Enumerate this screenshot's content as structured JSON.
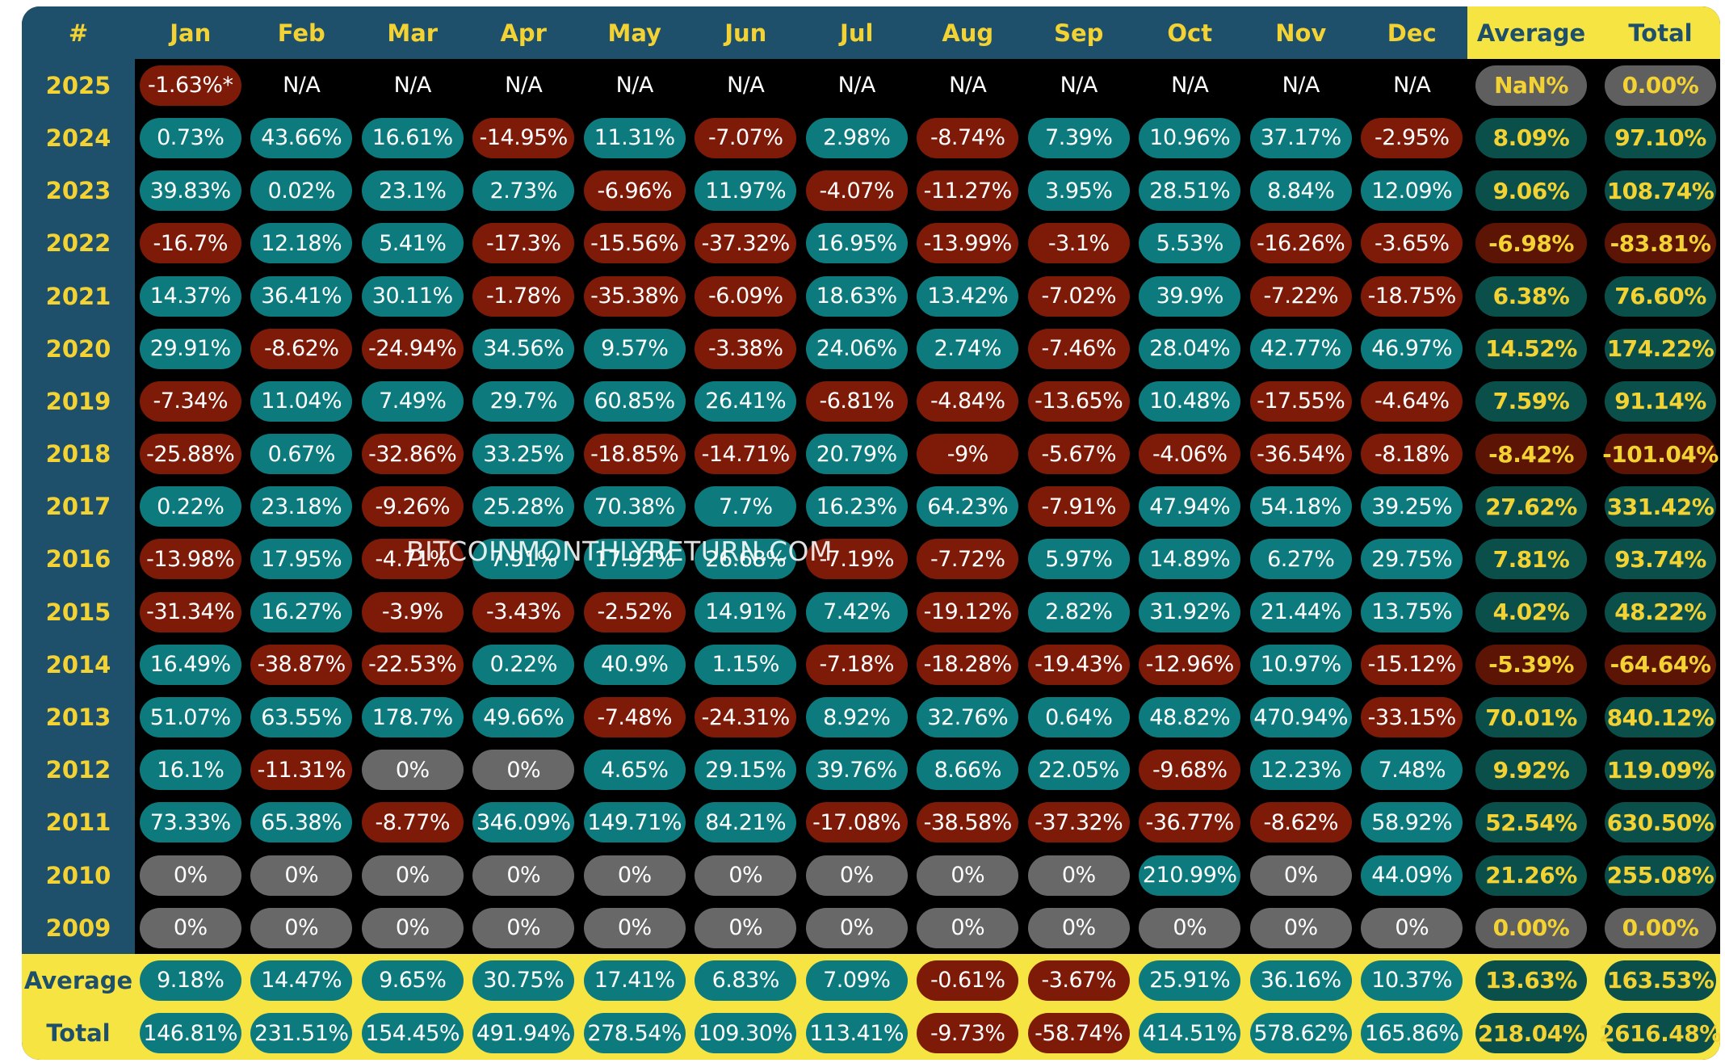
{
  "table": {
    "corner": "#",
    "months": [
      "Jan",
      "Feb",
      "Mar",
      "Apr",
      "May",
      "Jun",
      "Jul",
      "Aug",
      "Sep",
      "Oct",
      "Nov",
      "Dec"
    ],
    "average_header": "Average",
    "total_header": "Total",
    "rows": [
      {
        "year": "2025",
        "values": [
          "-1.63%*",
          "N/A",
          "N/A",
          "N/A",
          "N/A",
          "N/A",
          "N/A",
          "N/A",
          "N/A",
          "N/A",
          "N/A",
          "N/A"
        ],
        "average": "NaN%",
        "total": "0.00%"
      },
      {
        "year": "2024",
        "values": [
          "0.73%",
          "43.66%",
          "16.61%",
          "-14.95%",
          "11.31%",
          "-7.07%",
          "2.98%",
          "-8.74%",
          "7.39%",
          "10.96%",
          "37.17%",
          "-2.95%"
        ],
        "average": "8.09%",
        "total": "97.10%"
      },
      {
        "year": "2023",
        "values": [
          "39.83%",
          "0.02%",
          "23.1%",
          "2.73%",
          "-6.96%",
          "11.97%",
          "-4.07%",
          "-11.27%",
          "3.95%",
          "28.51%",
          "8.84%",
          "12.09%"
        ],
        "average": "9.06%",
        "total": "108.74%"
      },
      {
        "year": "2022",
        "values": [
          "-16.7%",
          "12.18%",
          "5.41%",
          "-17.3%",
          "-15.56%",
          "-37.32%",
          "16.95%",
          "-13.99%",
          "-3.1%",
          "5.53%",
          "-16.26%",
          "-3.65%"
        ],
        "average": "-6.98%",
        "total": "-83.81%"
      },
      {
        "year": "2021",
        "values": [
          "14.37%",
          "36.41%",
          "30.11%",
          "-1.78%",
          "-35.38%",
          "-6.09%",
          "18.63%",
          "13.42%",
          "-7.02%",
          "39.9%",
          "-7.22%",
          "-18.75%"
        ],
        "average": "6.38%",
        "total": "76.60%"
      },
      {
        "year": "2020",
        "values": [
          "29.91%",
          "-8.62%",
          "-24.94%",
          "34.56%",
          "9.57%",
          "-3.38%",
          "24.06%",
          "2.74%",
          "-7.46%",
          "28.04%",
          "42.77%",
          "46.97%"
        ],
        "average": "14.52%",
        "total": "174.22%"
      },
      {
        "year": "2019",
        "values": [
          "-7.34%",
          "11.04%",
          "7.49%",
          "29.7%",
          "60.85%",
          "26.41%",
          "-6.81%",
          "-4.84%",
          "-13.65%",
          "10.48%",
          "-17.55%",
          "-4.64%"
        ],
        "average": "7.59%",
        "total": "91.14%"
      },
      {
        "year": "2018",
        "values": [
          "-25.88%",
          "0.67%",
          "-32.86%",
          "33.25%",
          "-18.85%",
          "-14.71%",
          "20.79%",
          "-9%",
          "-5.67%",
          "-4.06%",
          "-36.54%",
          "-8.18%"
        ],
        "average": "-8.42%",
        "total": "-101.04%"
      },
      {
        "year": "2017",
        "values": [
          "0.22%",
          "23.18%",
          "-9.26%",
          "25.28%",
          "70.38%",
          "7.7%",
          "16.23%",
          "64.23%",
          "-7.91%",
          "47.94%",
          "54.18%",
          "39.25%"
        ],
        "average": "27.62%",
        "total": "331.42%"
      },
      {
        "year": "2016",
        "values": [
          "-13.98%",
          "17.95%",
          "-4.71%",
          "7.91%",
          "17.92%",
          "26.68%",
          "-7.19%",
          "-7.72%",
          "5.97%",
          "14.89%",
          "6.27%",
          "29.75%"
        ],
        "average": "7.81%",
        "total": "93.74%"
      },
      {
        "year": "2015",
        "values": [
          "-31.34%",
          "16.27%",
          "-3.9%",
          "-3.43%",
          "-2.52%",
          "14.91%",
          "7.42%",
          "-19.12%",
          "2.82%",
          "31.92%",
          "21.44%",
          "13.75%"
        ],
        "average": "4.02%",
        "total": "48.22%"
      },
      {
        "year": "2014",
        "values": [
          "16.49%",
          "-38.87%",
          "-22.53%",
          "0.22%",
          "40.9%",
          "1.15%",
          "-7.18%",
          "-18.28%",
          "-19.43%",
          "-12.96%",
          "10.97%",
          "-15.12%"
        ],
        "average": "-5.39%",
        "total": "-64.64%"
      },
      {
        "year": "2013",
        "values": [
          "51.07%",
          "63.55%",
          "178.7%",
          "49.66%",
          "-7.48%",
          "-24.31%",
          "8.92%",
          "32.76%",
          "0.64%",
          "48.82%",
          "470.94%",
          "-33.15%"
        ],
        "average": "70.01%",
        "total": "840.12%"
      },
      {
        "year": "2012",
        "values": [
          "16.1%",
          "-11.31%",
          "0%",
          "0%",
          "4.65%",
          "29.15%",
          "39.76%",
          "8.66%",
          "22.05%",
          "-9.68%",
          "12.23%",
          "7.48%"
        ],
        "average": "9.92%",
        "total": "119.09%"
      },
      {
        "year": "2011",
        "values": [
          "73.33%",
          "65.38%",
          "-8.77%",
          "346.09%",
          "149.71%",
          "84.21%",
          "-17.08%",
          "-38.58%",
          "-37.32%",
          "-36.77%",
          "-8.62%",
          "58.92%"
        ],
        "average": "52.54%",
        "total": "630.50%"
      },
      {
        "year": "2010",
        "values": [
          "0%",
          "0%",
          "0%",
          "0%",
          "0%",
          "0%",
          "0%",
          "0%",
          "0%",
          "210.99%",
          "0%",
          "44.09%"
        ],
        "average": "21.26%",
        "total": "255.08%"
      },
      {
        "year": "2009",
        "values": [
          "0%",
          "0%",
          "0%",
          "0%",
          "0%",
          "0%",
          "0%",
          "0%",
          "0%",
          "0%",
          "0%",
          "0%"
        ],
        "average": "0.00%",
        "total": "0.00%"
      }
    ],
    "footer": [
      {
        "label": "Average",
        "values": [
          "9.18%",
          "14.47%",
          "9.65%",
          "30.75%",
          "17.41%",
          "6.83%",
          "7.09%",
          "-0.61%",
          "-3.67%",
          "25.91%",
          "36.16%",
          "10.37%"
        ],
        "average": "13.63%",
        "total": "163.53%"
      },
      {
        "label": "Total",
        "values": [
          "146.81%",
          "231.51%",
          "154.45%",
          "491.94%",
          "278.54%",
          "109.30%",
          "113.41%",
          "-9.73%",
          "-58.74%",
          "414.51%",
          "578.62%",
          "165.86%"
        ],
        "average": "218.04%",
        "total": "2616.48%"
      }
    ]
  },
  "watermark": "BITCOINMONTHLYRETURN.COM",
  "colors": {
    "header_bg": "#1e4f6b",
    "header_text": "#f3d234",
    "highlight_bg": "#f6e443",
    "positive": "#0d7b7e",
    "negative": "#7e1a08",
    "zero": "#686868",
    "summary_positive": "#0b4f4b",
    "summary_negative": "#5c1505"
  }
}
